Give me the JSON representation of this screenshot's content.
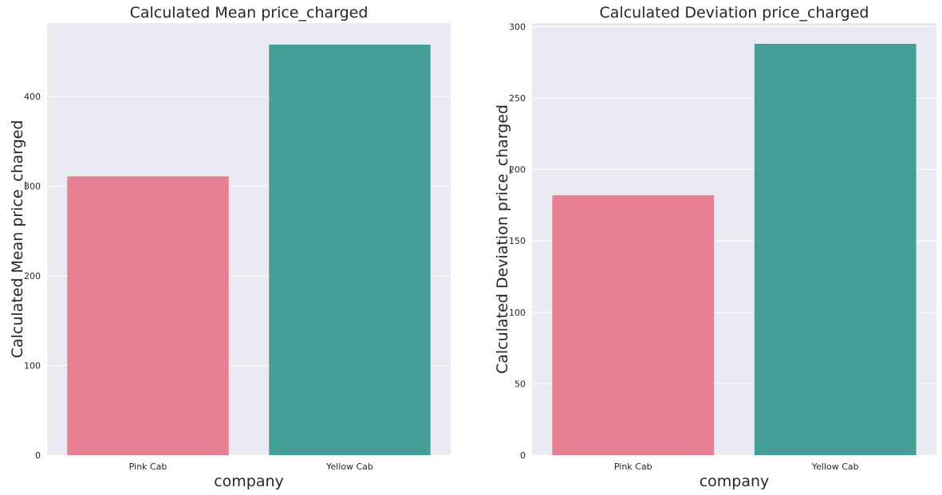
{
  "colors": {
    "background": "#eaeaf2",
    "grid": "#ffffff",
    "text": "#262626",
    "bar_pink": "#e67f91",
    "bar_teal": "#469e98"
  },
  "chart_data": [
    {
      "type": "bar",
      "title": "Calculated Mean price_charged",
      "xlabel": "company",
      "ylabel": "Calculated Mean price_charged",
      "categories": [
        "Pink Cab",
        "Yellow Cab"
      ],
      "values": [
        311,
        458
      ],
      "ylim": [
        0,
        482
      ],
      "yticks": [
        0,
        100,
        200,
        300,
        400
      ],
      "grid": true,
      "bar_colors": [
        "#e67f91",
        "#469e98"
      ]
    },
    {
      "type": "bar",
      "title": "Calculated Deviation price_charged",
      "xlabel": "company",
      "ylabel": "Calculated Deviation price_charged",
      "categories": [
        "Pink Cab",
        "Yellow Cab"
      ],
      "values": [
        182,
        288
      ],
      "ylim": [
        0,
        302.5
      ],
      "yticks": [
        0,
        50,
        100,
        150,
        200,
        250,
        300
      ],
      "grid": true,
      "bar_colors": [
        "#e67f91",
        "#469e98"
      ]
    }
  ]
}
